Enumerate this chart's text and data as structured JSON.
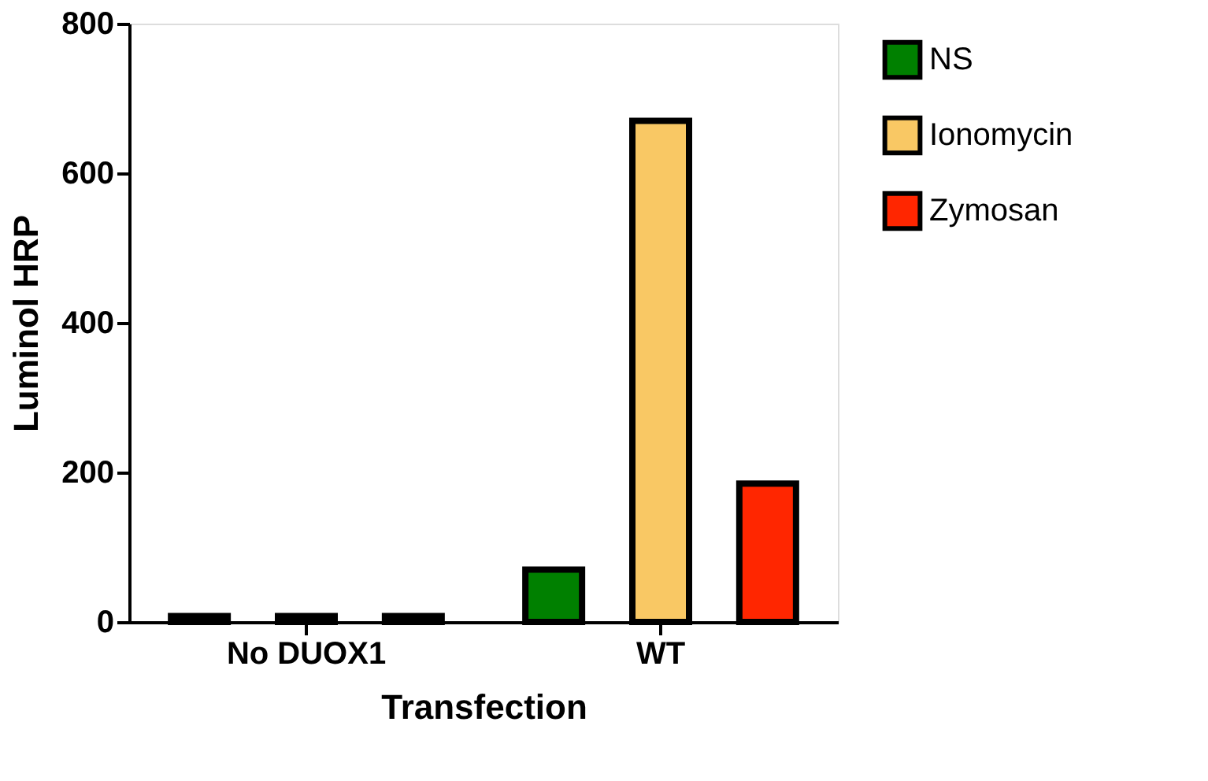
{
  "chart_data": {
    "type": "bar",
    "xlabel": "Transfection",
    "ylabel": "Luminol HRP",
    "categories": [
      "No DUOX1",
      "WT"
    ],
    "series": [
      {
        "name": "NS",
        "color": "#008000",
        "values": [
          8,
          70
        ]
      },
      {
        "name": "Ionomycin",
        "color": "#f9c864",
        "values": [
          8,
          670
        ]
      },
      {
        "name": "Zymosan",
        "color": "#ff2600",
        "values": [
          8,
          185
        ]
      }
    ],
    "ylim": [
      0,
      800
    ],
    "yticks": [
      0,
      200,
      400,
      600,
      800
    ],
    "grid": false,
    "legend": "top right"
  }
}
